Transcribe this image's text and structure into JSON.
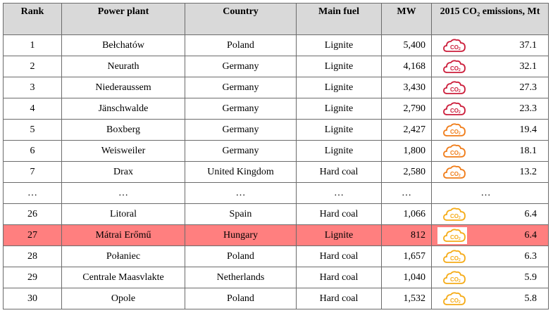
{
  "table": {
    "headers": {
      "rank": "Rank",
      "plant": "Power plant",
      "country": "Country",
      "fuel": "Main fuel",
      "mw": "MW",
      "emissions": "2015 CO₂ emissions, Mt"
    },
    "rows": [
      {
        "rank": "1",
        "plant": "Bełchatów",
        "country": "Poland",
        "fuel": "Lignite",
        "mw": "5,400",
        "emissions": "37.1",
        "icon": "co2-cloud-icon",
        "icon_color": "#cc1f3c"
      },
      {
        "rank": "2",
        "plant": "Neurath",
        "country": "Germany",
        "fuel": "Lignite",
        "mw": "4,168",
        "emissions": "32.1",
        "icon": "co2-cloud-icon",
        "icon_color": "#cc1f3c"
      },
      {
        "rank": "3",
        "plant": "Niederaussem",
        "country": "Germany",
        "fuel": "Lignite",
        "mw": "3,430",
        "emissions": "27.3",
        "icon": "co2-cloud-icon",
        "icon_color": "#cc1f3c"
      },
      {
        "rank": "4",
        "plant": "Jänschwalde",
        "country": "Germany",
        "fuel": "Lignite",
        "mw": "2,790",
        "emissions": "23.3",
        "icon": "co2-cloud-icon",
        "icon_color": "#cc1f3c"
      },
      {
        "rank": "5",
        "plant": "Boxberg",
        "country": "Germany",
        "fuel": "Lignite",
        "mw": "2,427",
        "emissions": "19.4",
        "icon": "co2-cloud-icon",
        "icon_color": "#f07d1a"
      },
      {
        "rank": "6",
        "plant": "Weisweiler",
        "country": "Germany",
        "fuel": "Lignite",
        "mw": "1,800",
        "emissions": "18.1",
        "icon": "co2-cloud-icon",
        "icon_color": "#f07d1a"
      },
      {
        "rank": "7",
        "plant": "Drax",
        "country": "United Kingdom",
        "fuel": "Hard coal",
        "mw": "2,580",
        "emissions": "13.2",
        "icon": "co2-cloud-icon",
        "icon_color": "#f07d1a"
      },
      {
        "rank": "…",
        "plant": "…",
        "country": "…",
        "fuel": "…",
        "mw": "…",
        "emissions": "…",
        "icon": "",
        "icon_color": ""
      },
      {
        "rank": "26",
        "plant": "Litoral",
        "country": "Spain",
        "fuel": "Hard coal",
        "mw": "1,066",
        "emissions": "6.4",
        "icon": "co2-cloud-icon",
        "icon_color": "#f5ac1a"
      },
      {
        "rank": "27",
        "plant": "Mátrai Erőmű",
        "country": "Hungary",
        "fuel": "Lignite",
        "mw": "812",
        "emissions": "6.4",
        "icon": "co2-cloud-icon",
        "icon_color": "#f5ac1a",
        "highlight": true
      },
      {
        "rank": "28",
        "plant": "Połaniec",
        "country": "Poland",
        "fuel": "Hard coal",
        "mw": "1,657",
        "emissions": "6.3",
        "icon": "co2-cloud-icon",
        "icon_color": "#f5ac1a"
      },
      {
        "rank": "29",
        "plant": "Centrale Maasvlakte",
        "country": "Netherlands",
        "fuel": "Hard coal",
        "mw": "1,040",
        "emissions": "5.9",
        "icon": "co2-cloud-icon",
        "icon_color": "#f5ac1a"
      },
      {
        "rank": "30",
        "plant": "Opole",
        "country": "Poland",
        "fuel": "Hard coal",
        "mw": "1,532",
        "emissions": "5.8",
        "icon": "co2-cloud-icon",
        "icon_color": "#f5ac1a"
      }
    ],
    "colors": {
      "header_bg": "#d9d9d9",
      "highlight_bg": "#ff7f7f",
      "border": "#6b6b6b"
    }
  }
}
